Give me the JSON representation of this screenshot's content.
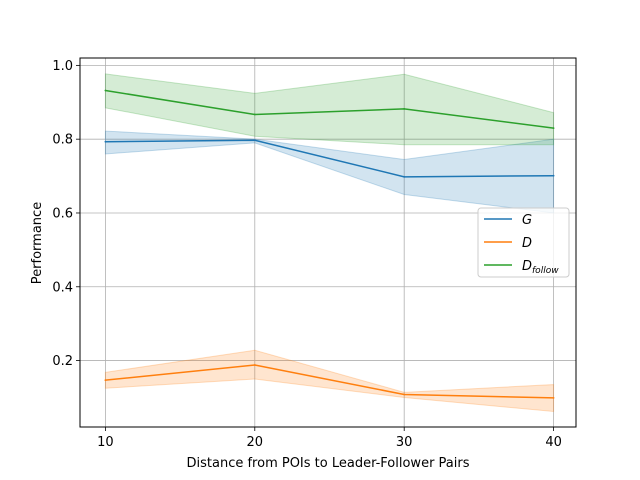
{
  "chart_data": {
    "type": "line",
    "xlabel": "Distance from POIs to Leader-Follower Pairs",
    "ylabel": "Performance",
    "x": [
      10,
      20,
      30,
      40
    ],
    "xticks": [
      "10",
      "20",
      "30",
      "40"
    ],
    "yticks": [
      "0.2",
      "0.4",
      "0.6",
      "0.8",
      "1.0"
    ],
    "xlim": [
      8.3,
      41.5
    ],
    "ylim": [
      0.02,
      1.02
    ],
    "grid": true,
    "legend_position": "center-right",
    "series": [
      {
        "name": "G",
        "legend_main": "G",
        "legend_sub": "",
        "color": "#1f77b4",
        "values": [
          0.793,
          0.797,
          0.698,
          0.701
        ],
        "lower": [
          0.76,
          0.79,
          0.65,
          0.6
        ],
        "upper": [
          0.822,
          0.8,
          0.745,
          0.8
        ]
      },
      {
        "name": "D",
        "legend_main": "D",
        "legend_sub": "",
        "color": "#ff7f0e",
        "values": [
          0.147,
          0.188,
          0.108,
          0.099
        ],
        "lower": [
          0.125,
          0.15,
          0.1,
          0.062
        ],
        "upper": [
          0.168,
          0.228,
          0.114,
          0.135
        ]
      },
      {
        "name": "D_follow",
        "legend_main": "D",
        "legend_sub": "follow",
        "color": "#2ca02c",
        "values": [
          0.932,
          0.867,
          0.882,
          0.83
        ],
        "lower": [
          0.885,
          0.808,
          0.785,
          0.785
        ],
        "upper": [
          0.977,
          0.924,
          0.976,
          0.872
        ]
      }
    ]
  }
}
